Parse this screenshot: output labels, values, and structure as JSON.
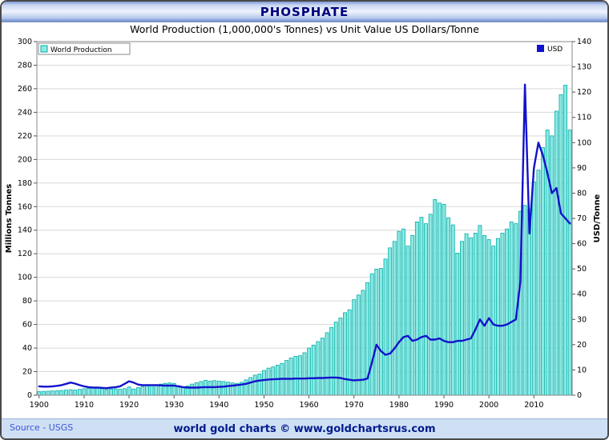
{
  "window": {
    "title": "PHOSPHATE"
  },
  "subtitle": "World Production (1,000,000's Tonnes) vs Unit Value US Dollars/Tonne",
  "footer": {
    "source": "Source - USGS",
    "credit": "world gold charts © www.goldchartsrus.com"
  },
  "legend": {
    "production": "World Production",
    "usd": "USD"
  },
  "colors": {
    "bar_fill": "#8CE8E2",
    "bar_stroke": "#00AFA8",
    "line": "#1212CC",
    "grid": "#d9d9d9",
    "plot_border": "#888888",
    "title_text": "#00007d"
  },
  "chart_data": {
    "type": "bar",
    "title": "World Production (1,000,000's Tonnes) vs Unit Value US Dollars/Tonne",
    "x": [
      1900,
      1901,
      1902,
      1903,
      1904,
      1905,
      1906,
      1907,
      1908,
      1909,
      1910,
      1911,
      1912,
      1913,
      1914,
      1915,
      1916,
      1917,
      1918,
      1919,
      1920,
      1921,
      1922,
      1923,
      1924,
      1925,
      1926,
      1927,
      1928,
      1929,
      1930,
      1931,
      1932,
      1933,
      1934,
      1935,
      1936,
      1937,
      1938,
      1939,
      1940,
      1941,
      1942,
      1943,
      1944,
      1945,
      1946,
      1947,
      1948,
      1949,
      1950,
      1951,
      1952,
      1953,
      1954,
      1955,
      1956,
      1957,
      1958,
      1959,
      1960,
      1961,
      1962,
      1963,
      1964,
      1965,
      1966,
      1967,
      1968,
      1969,
      1970,
      1971,
      1972,
      1973,
      1974,
      1975,
      1976,
      1977,
      1978,
      1979,
      1980,
      1981,
      1982,
      1983,
      1984,
      1985,
      1986,
      1987,
      1988,
      1989,
      1990,
      1991,
      1992,
      1993,
      1994,
      1995,
      1996,
      1997,
      1998,
      1999,
      2000,
      2001,
      2002,
      2003,
      2004,
      2005,
      2006,
      2007,
      2008,
      2009,
      2010,
      2011,
      2012,
      2013,
      2014,
      2015,
      2016,
      2017,
      2018
    ],
    "series": [
      {
        "name": "World Production",
        "type": "bar",
        "axis": "left",
        "color": "#8CE8E2",
        "stroke": "#00AFA8",
        "values": [
          3.0,
          3.2,
          3.4,
          3.6,
          3.8,
          4.0,
          4.3,
          4.6,
          4.4,
          5.0,
          5.5,
          5.8,
          6.2,
          6.6,
          5.4,
          4.8,
          5.2,
          5.4,
          5.0,
          5.6,
          7.0,
          5.2,
          6.4,
          7.4,
          8.0,
          8.6,
          9.0,
          9.4,
          10.0,
          10.4,
          10.0,
          8.0,
          6.8,
          7.8,
          9.4,
          10.6,
          11.6,
          12.6,
          12.0,
          12.4,
          12.0,
          11.6,
          11.0,
          10.4,
          10.0,
          11.0,
          13.0,
          15.0,
          17.0,
          18.0,
          21.0,
          23.0,
          24.0,
          25.5,
          27.0,
          29.5,
          31.5,
          33.0,
          33.5,
          36.0,
          40.0,
          42.5,
          45.5,
          48.5,
          53.0,
          57.5,
          62.0,
          65.5,
          70.0,
          72.5,
          81.0,
          85.0,
          89.0,
          95.5,
          103.0,
          107.0,
          107.5,
          115.5,
          125.0,
          130.5,
          139.0,
          141.0,
          126.5,
          135.5,
          147.0,
          151.0,
          145.5,
          153.5,
          166.0,
          163.0,
          162.0,
          150.5,
          144.5,
          120.5,
          130.5,
          137.0,
          133.5,
          137.5,
          144.0,
          135.5,
          132.0,
          126.5,
          133.0,
          137.5,
          141.0,
          147.0,
          145.5,
          156.0,
          161.0,
          158.0,
          181.0,
          191.0,
          210.0,
          225.0,
          220.0,
          241.0,
          255.0,
          263.0,
          225.0
        ]
      },
      {
        "name": "USD",
        "type": "line",
        "axis": "right",
        "color": "#1212CC",
        "values": [
          3.5,
          3.4,
          3.4,
          3.5,
          3.7,
          4.0,
          4.5,
          5.0,
          4.6,
          4.0,
          3.5,
          3.2,
          3.0,
          3.0,
          2.9,
          2.8,
          3.0,
          3.2,
          3.5,
          4.5,
          5.5,
          5.0,
          4.2,
          4.0,
          4.0,
          4.0,
          4.0,
          3.9,
          3.8,
          3.8,
          3.8,
          3.5,
          3.2,
          3.0,
          3.0,
          3.0,
          3.1,
          3.2,
          3.2,
          3.2,
          3.3,
          3.4,
          3.6,
          3.8,
          4.0,
          4.2,
          4.5,
          5.0,
          5.5,
          5.8,
          6.0,
          6.2,
          6.3,
          6.4,
          6.5,
          6.5,
          6.5,
          6.6,
          6.6,
          6.6,
          6.7,
          6.7,
          6.8,
          6.8,
          6.9,
          7.0,
          7.0,
          6.8,
          6.4,
          6.1,
          5.9,
          6.0,
          6.1,
          6.6,
          13.0,
          20.0,
          17.5,
          16.0,
          16.5,
          18.5,
          21.0,
          23.0,
          23.5,
          21.5,
          22.0,
          23.0,
          23.5,
          22.0,
          22.0,
          22.5,
          21.5,
          21.0,
          21.0,
          21.5,
          21.5,
          22.0,
          22.5,
          26.0,
          30.0,
          27.5,
          30.5,
          28.0,
          27.5,
          27.5,
          28.0,
          29.0,
          30.0,
          45.0,
          123.0,
          64.0,
          90.0,
          100.0,
          95.0,
          88.0,
          80.0,
          82.0,
          72.0,
          70.0,
          68.0
        ]
      }
    ],
    "left_axis": {
      "label": "Millions Tonnes",
      "min": 0,
      "max": 300,
      "step": 20
    },
    "right_axis": {
      "label": "USD/Tonne",
      "min": 0,
      "max": 140,
      "step": 10
    },
    "x_tick_every": 10,
    "grid": true,
    "legend_position": "top-left / top-right"
  }
}
